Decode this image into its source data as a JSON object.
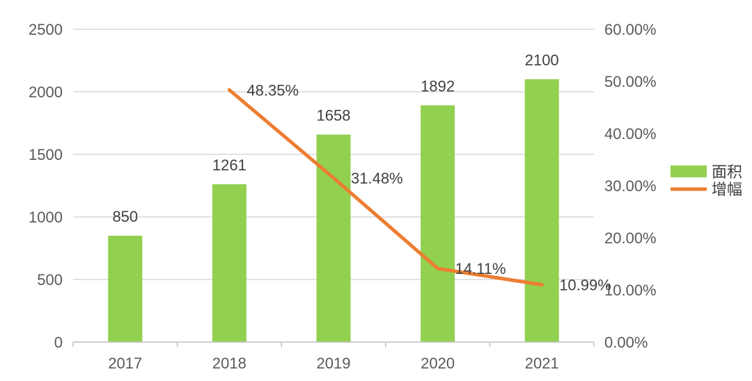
{
  "chart_data": {
    "type": "bar",
    "categories": [
      "2017",
      "2018",
      "2019",
      "2020",
      "2021"
    ],
    "series": [
      {
        "name": "面积",
        "type": "bar",
        "axis": "left",
        "values": [
          850,
          1261,
          1658,
          1892,
          2100
        ],
        "labels": [
          "850",
          "1261",
          "1658",
          "1892",
          "2100"
        ],
        "color": "#92d050"
      },
      {
        "name": "增幅",
        "type": "line",
        "axis": "right",
        "values": [
          null,
          48.35,
          31.48,
          14.11,
          10.99
        ],
        "labels": [
          null,
          "48.35%",
          "31.48%",
          "14.11%",
          "10.99%"
        ],
        "color": "#ed7d31"
      }
    ],
    "y_left": {
      "ylim": [
        0,
        2500
      ],
      "ticks": [
        0,
        500,
        1000,
        1500,
        2000,
        2500
      ],
      "tick_labels": [
        "0",
        "500",
        "1000",
        "1500",
        "2000",
        "2500"
      ]
    },
    "y_right": {
      "ylim": [
        0,
        60
      ],
      "ticks": [
        0,
        10,
        20,
        30,
        40,
        50,
        60
      ],
      "tick_labels": [
        "0.00%",
        "10.00%",
        "20.00%",
        "30.00%",
        "40.00%",
        "50.00%",
        "60.00%"
      ]
    },
    "grid": true,
    "legend": "right",
    "gridline_color": "#d9d9d9",
    "axis_color": "#bfbfbf"
  }
}
